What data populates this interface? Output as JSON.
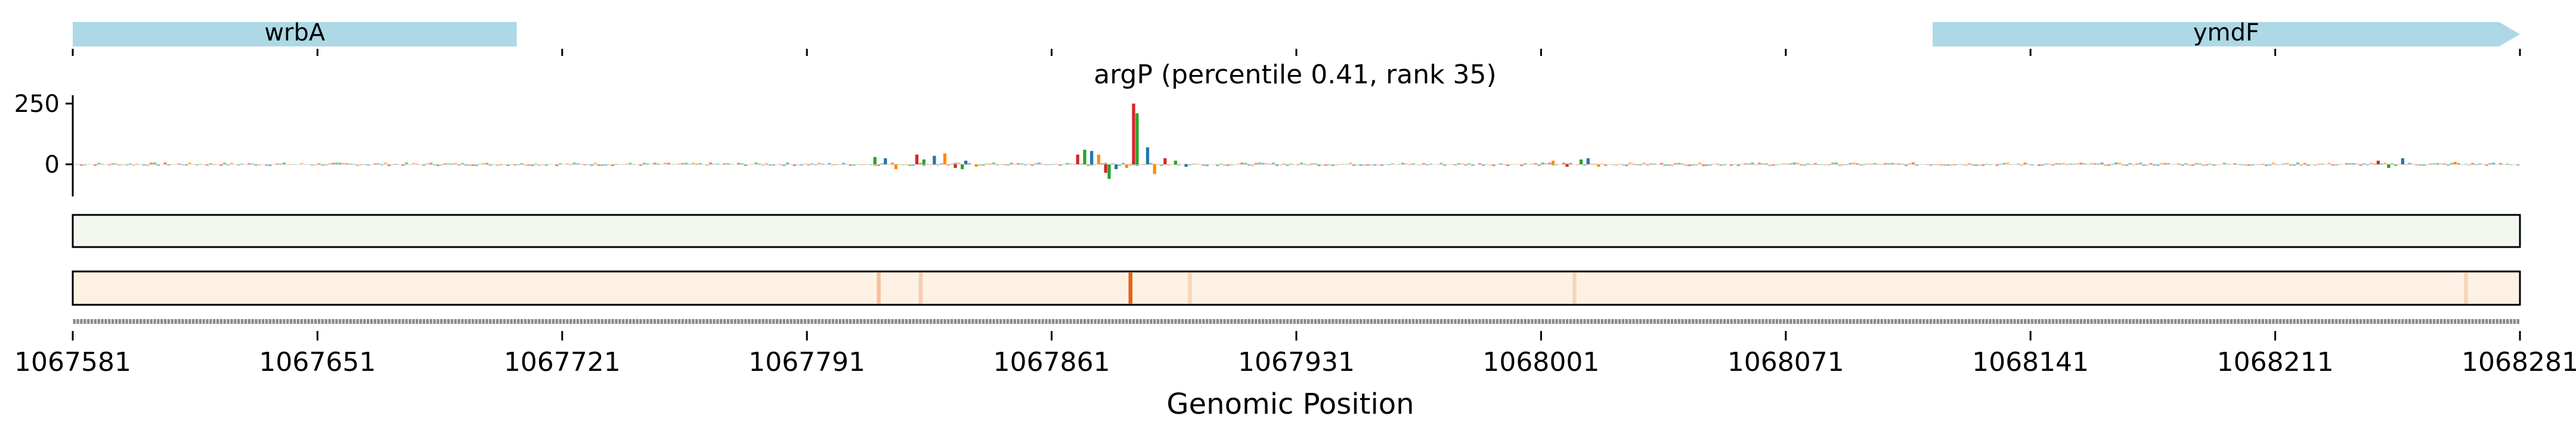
{
  "chart_data": {
    "type": "genome_track",
    "title": "argP (percentile 0.41, rank 35)",
    "xlabel": "Genomic Position",
    "xlim": [
      1067581,
      1068281
    ],
    "xticks": [
      1067581,
      1067651,
      1067721,
      1067791,
      1067861,
      1067931,
      1068001,
      1068071,
      1068141,
      1068211,
      1068281
    ],
    "genes": [
      {
        "name": "wrbA",
        "start": 1067581,
        "end": 1067708,
        "strand": "+",
        "color": "#add8e6"
      },
      {
        "name": "ymdF",
        "start": 1068113,
        "end": 1068282,
        "strand": "+",
        "color": "#add8e6"
      }
    ],
    "attribution_track": {
      "ylabel": "",
      "yticks": [
        0,
        250
      ],
      "ylim": [
        -100,
        270
      ],
      "peaks": [
        {
          "position": 1067810,
          "value": 30
        },
        {
          "position": 1067813,
          "value": 25
        },
        {
          "position": 1067816,
          "value": -20
        },
        {
          "position": 1067822,
          "value": 40
        },
        {
          "position": 1067824,
          "value": 20
        },
        {
          "position": 1067827,
          "value": 35
        },
        {
          "position": 1067830,
          "value": 45
        },
        {
          "position": 1067833,
          "value": -15
        },
        {
          "position": 1067835,
          "value": -20
        },
        {
          "position": 1067836,
          "value": 15
        },
        {
          "position": 1067839,
          "value": -10
        },
        {
          "position": 1067868,
          "value": 40
        },
        {
          "position": 1067870,
          "value": 60
        },
        {
          "position": 1067872,
          "value": 55
        },
        {
          "position": 1067874,
          "value": 40
        },
        {
          "position": 1067876,
          "value": -35
        },
        {
          "position": 1067877,
          "value": -60
        },
        {
          "position": 1067879,
          "value": -20
        },
        {
          "position": 1067882,
          "value": -15
        },
        {
          "position": 1067884,
          "value": 250
        },
        {
          "position": 1067885,
          "value": 210
        },
        {
          "position": 1067888,
          "value": 70
        },
        {
          "position": 1067890,
          "value": -40
        },
        {
          "position": 1067893,
          "value": 25
        },
        {
          "position": 1067896,
          "value": 15
        },
        {
          "position": 1067899,
          "value": -10
        },
        {
          "position": 1068004,
          "value": 15
        },
        {
          "position": 1068008,
          "value": -10
        },
        {
          "position": 1068012,
          "value": 20
        },
        {
          "position": 1068014,
          "value": 25
        },
        {
          "position": 1068017,
          "value": -10
        },
        {
          "position": 1068240,
          "value": 15
        },
        {
          "position": 1068243,
          "value": -15
        },
        {
          "position": 1068247,
          "value": 25
        },
        {
          "position": 1068262,
          "value": 10
        }
      ],
      "colors": {
        "A": "#2ca02c",
        "C": "#1f77b4",
        "G": "#ff8c00",
        "T": "#d62728"
      }
    },
    "heatmap_tracks": [
      {
        "name": "",
        "color": "#f2f8ee",
        "highlights": []
      },
      {
        "name": "",
        "color": "#fdf1e4",
        "highlights": [
          {
            "position": 1067883,
            "intensity": 1.0
          },
          {
            "position": 1067811,
            "intensity": 0.35
          },
          {
            "position": 1067823,
            "intensity": 0.25
          },
          {
            "position": 1067900,
            "intensity": 0.2
          },
          {
            "position": 1068010,
            "intensity": 0.2
          },
          {
            "position": 1068265,
            "intensity": 0.2
          }
        ]
      }
    ]
  }
}
